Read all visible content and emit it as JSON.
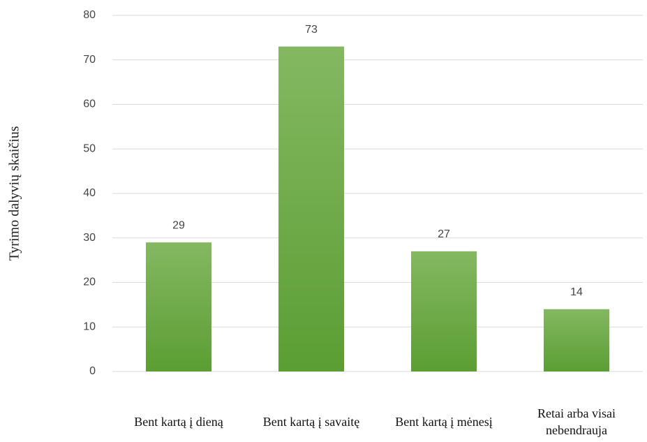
{
  "chart_data": {
    "type": "bar",
    "y_axis_label": "Tyrimo dalyvių skaičius",
    "categories": [
      "Bent kartą į dieną",
      "Bent kartą į savaitę",
      "Bent kartą į mėnesį",
      "Retai arba visai nebendrauja"
    ],
    "values": [
      29,
      73,
      27,
      14
    ],
    "color": "#6aab45",
    "ylim": [
      0,
      80
    ],
    "yticks": [
      0,
      10,
      20,
      30,
      40,
      50,
      60,
      70,
      80
    ],
    "grid": true
  }
}
